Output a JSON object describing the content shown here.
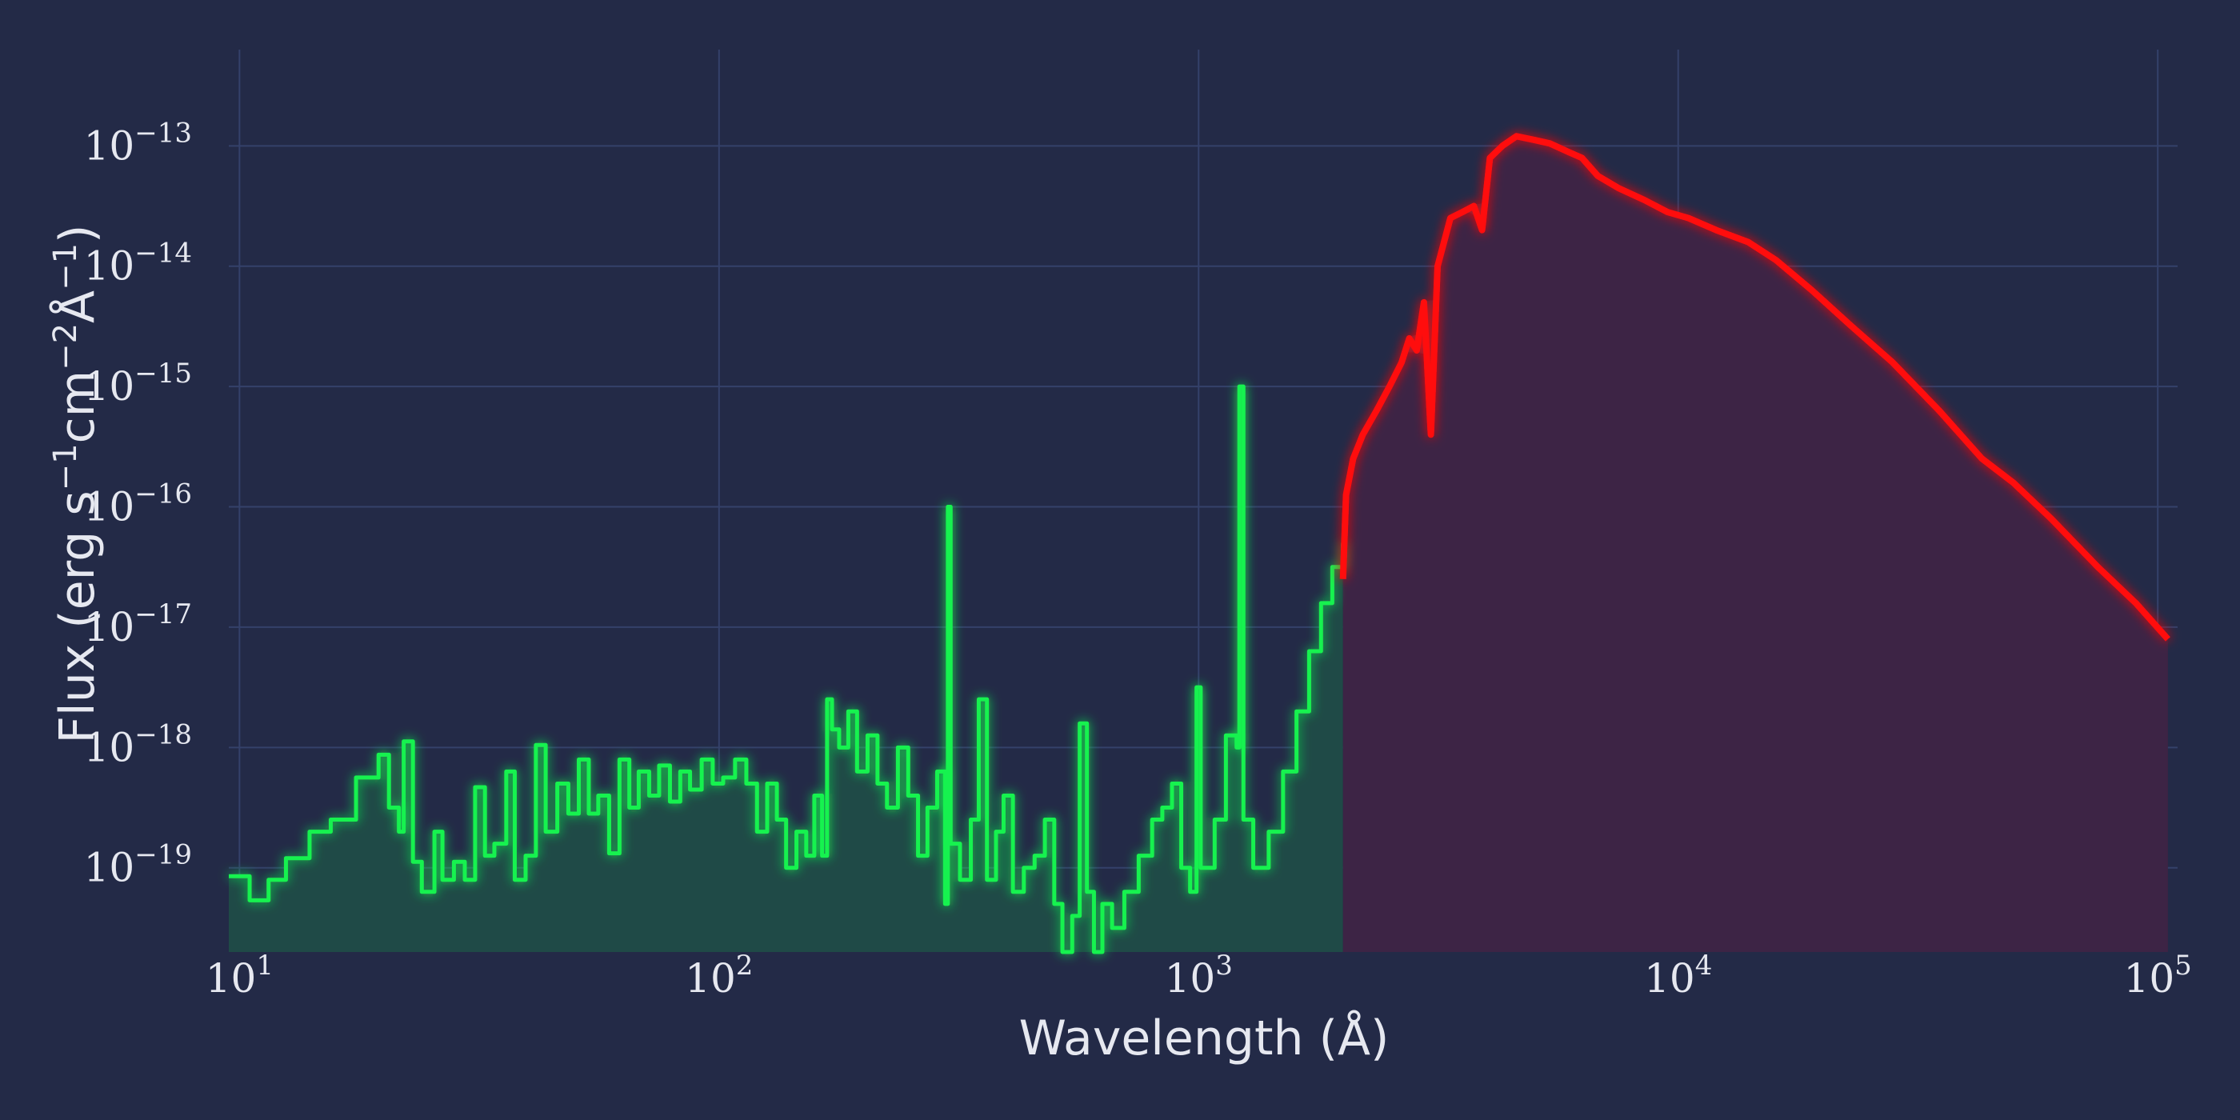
{
  "chart_data": {
    "type": "line",
    "title": "",
    "xlabel": "Wavelength (Å)",
    "ylabel": {
      "pre": "Flux (erg s",
      "s1": "−1",
      "mid": "cm",
      "s2": "−2",
      "mid2": "Å",
      "s3": "−1",
      "post": ")"
    },
    "xscale": "log",
    "yscale": "log",
    "xlim": [
      9.5,
      110000
    ],
    "ylim_log10": [
      -19.7,
      -12.2
    ],
    "grid": true,
    "legend": "none",
    "background": "#232a47",
    "x_ticks": [
      {
        "base": "10",
        "exp": "1",
        "value": 10
      },
      {
        "base": "10",
        "exp": "2",
        "value": 100
      },
      {
        "base": "10",
        "exp": "3",
        "value": 1000
      },
      {
        "base": "10",
        "exp": "4",
        "value": 10000
      },
      {
        "base": "10",
        "exp": "5",
        "value": 100000
      }
    ],
    "y_ticks": [
      {
        "base": "10",
        "exp": "−13",
        "log10": -13
      },
      {
        "base": "10",
        "exp": "−14",
        "log10": -14
      },
      {
        "base": "10",
        "exp": "−15",
        "log10": -15
      },
      {
        "base": "10",
        "exp": "−16",
        "log10": -16
      },
      {
        "base": "10",
        "exp": "−17",
        "log10": -17
      },
      {
        "base": "10",
        "exp": "−18",
        "log10": -18
      },
      {
        "base": "10",
        "exp": "−19",
        "log10": -19
      }
    ],
    "series": [
      {
        "color": "#17f24f",
        "fill": "#1f4a47",
        "style": "step",
        "points": [
          [
            9.5,
            -19.07
          ],
          [
            10.5,
            -19.27
          ],
          [
            11.5,
            -19.1
          ],
          [
            12.5,
            -18.92
          ],
          [
            14,
            -18.7
          ],
          [
            15.5,
            -18.6
          ],
          [
            17.5,
            -18.25
          ],
          [
            19.5,
            -18.06
          ],
          [
            20.5,
            -18.5
          ],
          [
            21.5,
            -18.7
          ],
          [
            22,
            -17.95
          ],
          [
            23,
            -18.95
          ],
          [
            24,
            -19.2
          ],
          [
            25.5,
            -18.7
          ],
          [
            26.5,
            -19.1
          ],
          [
            28,
            -18.95
          ],
          [
            29.5,
            -19.1
          ],
          [
            31,
            -18.33
          ],
          [
            32.5,
            -18.9
          ],
          [
            34,
            -18.8
          ],
          [
            36,
            -18.2
          ],
          [
            37.5,
            -19.1
          ],
          [
            39.5,
            -18.9
          ],
          [
            41.5,
            -17.98
          ],
          [
            43.5,
            -18.7
          ],
          [
            46,
            -18.3
          ],
          [
            48.5,
            -18.55
          ],
          [
            51,
            -18.1
          ],
          [
            53.5,
            -18.55
          ],
          [
            56,
            -18.4
          ],
          [
            59,
            -18.88
          ],
          [
            62,
            -18.1
          ],
          [
            65,
            -18.5
          ],
          [
            68,
            -18.2
          ],
          [
            71.5,
            -18.4
          ],
          [
            75,
            -18.15
          ],
          [
            79,
            -18.45
          ],
          [
            83,
            -18.2
          ],
          [
            87,
            -18.35
          ],
          [
            92,
            -18.1
          ],
          [
            97,
            -18.3
          ],
          [
            102,
            -18.25
          ],
          [
            108,
            -18.1
          ],
          [
            114,
            -18.3
          ],
          [
            120,
            -18.7
          ],
          [
            126,
            -18.3
          ],
          [
            132,
            -18.6
          ],
          [
            138,
            -19.0
          ],
          [
            145,
            -18.7
          ],
          [
            152,
            -18.9
          ],
          [
            158,
            -18.4
          ],
          [
            164,
            -18.9
          ],
          [
            168,
            -17.6
          ],
          [
            172,
            -17.85
          ],
          [
            178,
            -18.0
          ],
          [
            186,
            -17.7
          ],
          [
            194,
            -18.2
          ],
          [
            204,
            -17.9
          ],
          [
            214,
            -18.3
          ],
          [
            224,
            -18.5
          ],
          [
            236,
            -18.0
          ],
          [
            248,
            -18.4
          ],
          [
            260,
            -18.9
          ],
          [
            272,
            -18.5
          ],
          [
            285,
            -18.2
          ],
          [
            296,
            -19.3
          ],
          [
            300,
            -16.0
          ],
          [
            304,
            -18.8
          ],
          [
            318,
            -19.1
          ],
          [
            335,
            -18.6
          ],
          [
            348,
            -17.6
          ],
          [
            362,
            -19.1
          ],
          [
            378,
            -18.7
          ],
          [
            392,
            -18.4
          ],
          [
            410,
            -19.2
          ],
          [
            432,
            -19.0
          ],
          [
            455,
            -18.9
          ],
          [
            478,
            -18.6
          ],
          [
            500,
            -19.3
          ],
          [
            520,
            -19.7
          ],
          [
            545,
            -19.4
          ],
          [
            565,
            -17.8
          ],
          [
            585,
            -19.2
          ],
          [
            605,
            -19.7
          ],
          [
            630,
            -19.3
          ],
          [
            660,
            -19.5
          ],
          [
            700,
            -19.2
          ],
          [
            750,
            -18.9
          ],
          [
            800,
            -18.6
          ],
          [
            840,
            -18.5
          ],
          [
            880,
            -18.3
          ],
          [
            920,
            -19.0
          ],
          [
            960,
            -19.2
          ],
          [
            990,
            -17.5
          ],
          [
            1010,
            -19.0
          ],
          [
            1080,
            -18.6
          ],
          [
            1140,
            -17.9
          ],
          [
            1200,
            -18.0
          ],
          [
            1216,
            -15.0
          ],
          [
            1240,
            -18.6
          ],
          [
            1300,
            -19.0
          ],
          [
            1400,
            -18.7
          ],
          [
            1500,
            -18.2
          ],
          [
            1600,
            -17.7
          ],
          [
            1700,
            -17.2
          ],
          [
            1800,
            -16.8
          ],
          [
            1900,
            -16.5
          ],
          [
            2000,
            -16.3
          ]
        ]
      },
      {
        "color": "#ff1111",
        "fill": "#3d2445",
        "style": "line",
        "points": [
          [
            2000,
            -16.6
          ],
          [
            2030,
            -15.9
          ],
          [
            2100,
            -15.6
          ],
          [
            2200,
            -15.4
          ],
          [
            2350,
            -15.2
          ],
          [
            2500,
            -15.0
          ],
          [
            2650,
            -14.8
          ],
          [
            2750,
            -14.6
          ],
          [
            2850,
            -14.7
          ],
          [
            2950,
            -14.3
          ],
          [
            3050,
            -15.4
          ],
          [
            3150,
            -14.0
          ],
          [
            3350,
            -13.6
          ],
          [
            3550,
            -13.55
          ],
          [
            3750,
            -13.5
          ],
          [
            3900,
            -13.7
          ],
          [
            4050,
            -13.1
          ],
          [
            4300,
            -13.0
          ],
          [
            4600,
            -12.92
          ],
          [
            5000,
            -12.95
          ],
          [
            5400,
            -12.98
          ],
          [
            5900,
            -13.05
          ],
          [
            6300,
            -13.1
          ],
          [
            6800,
            -13.25
          ],
          [
            7500,
            -13.35
          ],
          [
            8500,
            -13.45
          ],
          [
            9500,
            -13.55
          ],
          [
            10500,
            -13.6
          ],
          [
            12000,
            -13.7
          ],
          [
            14000,
            -13.8
          ],
          [
            16000,
            -13.95
          ],
          [
            19000,
            -14.2
          ],
          [
            23000,
            -14.5
          ],
          [
            28000,
            -14.8
          ],
          [
            35000,
            -15.2
          ],
          [
            43000,
            -15.6
          ],
          [
            50000,
            -15.8
          ],
          [
            60000,
            -16.1
          ],
          [
            75000,
            -16.5
          ],
          [
            90000,
            -16.8
          ],
          [
            105000,
            -17.1
          ]
        ]
      }
    ]
  }
}
